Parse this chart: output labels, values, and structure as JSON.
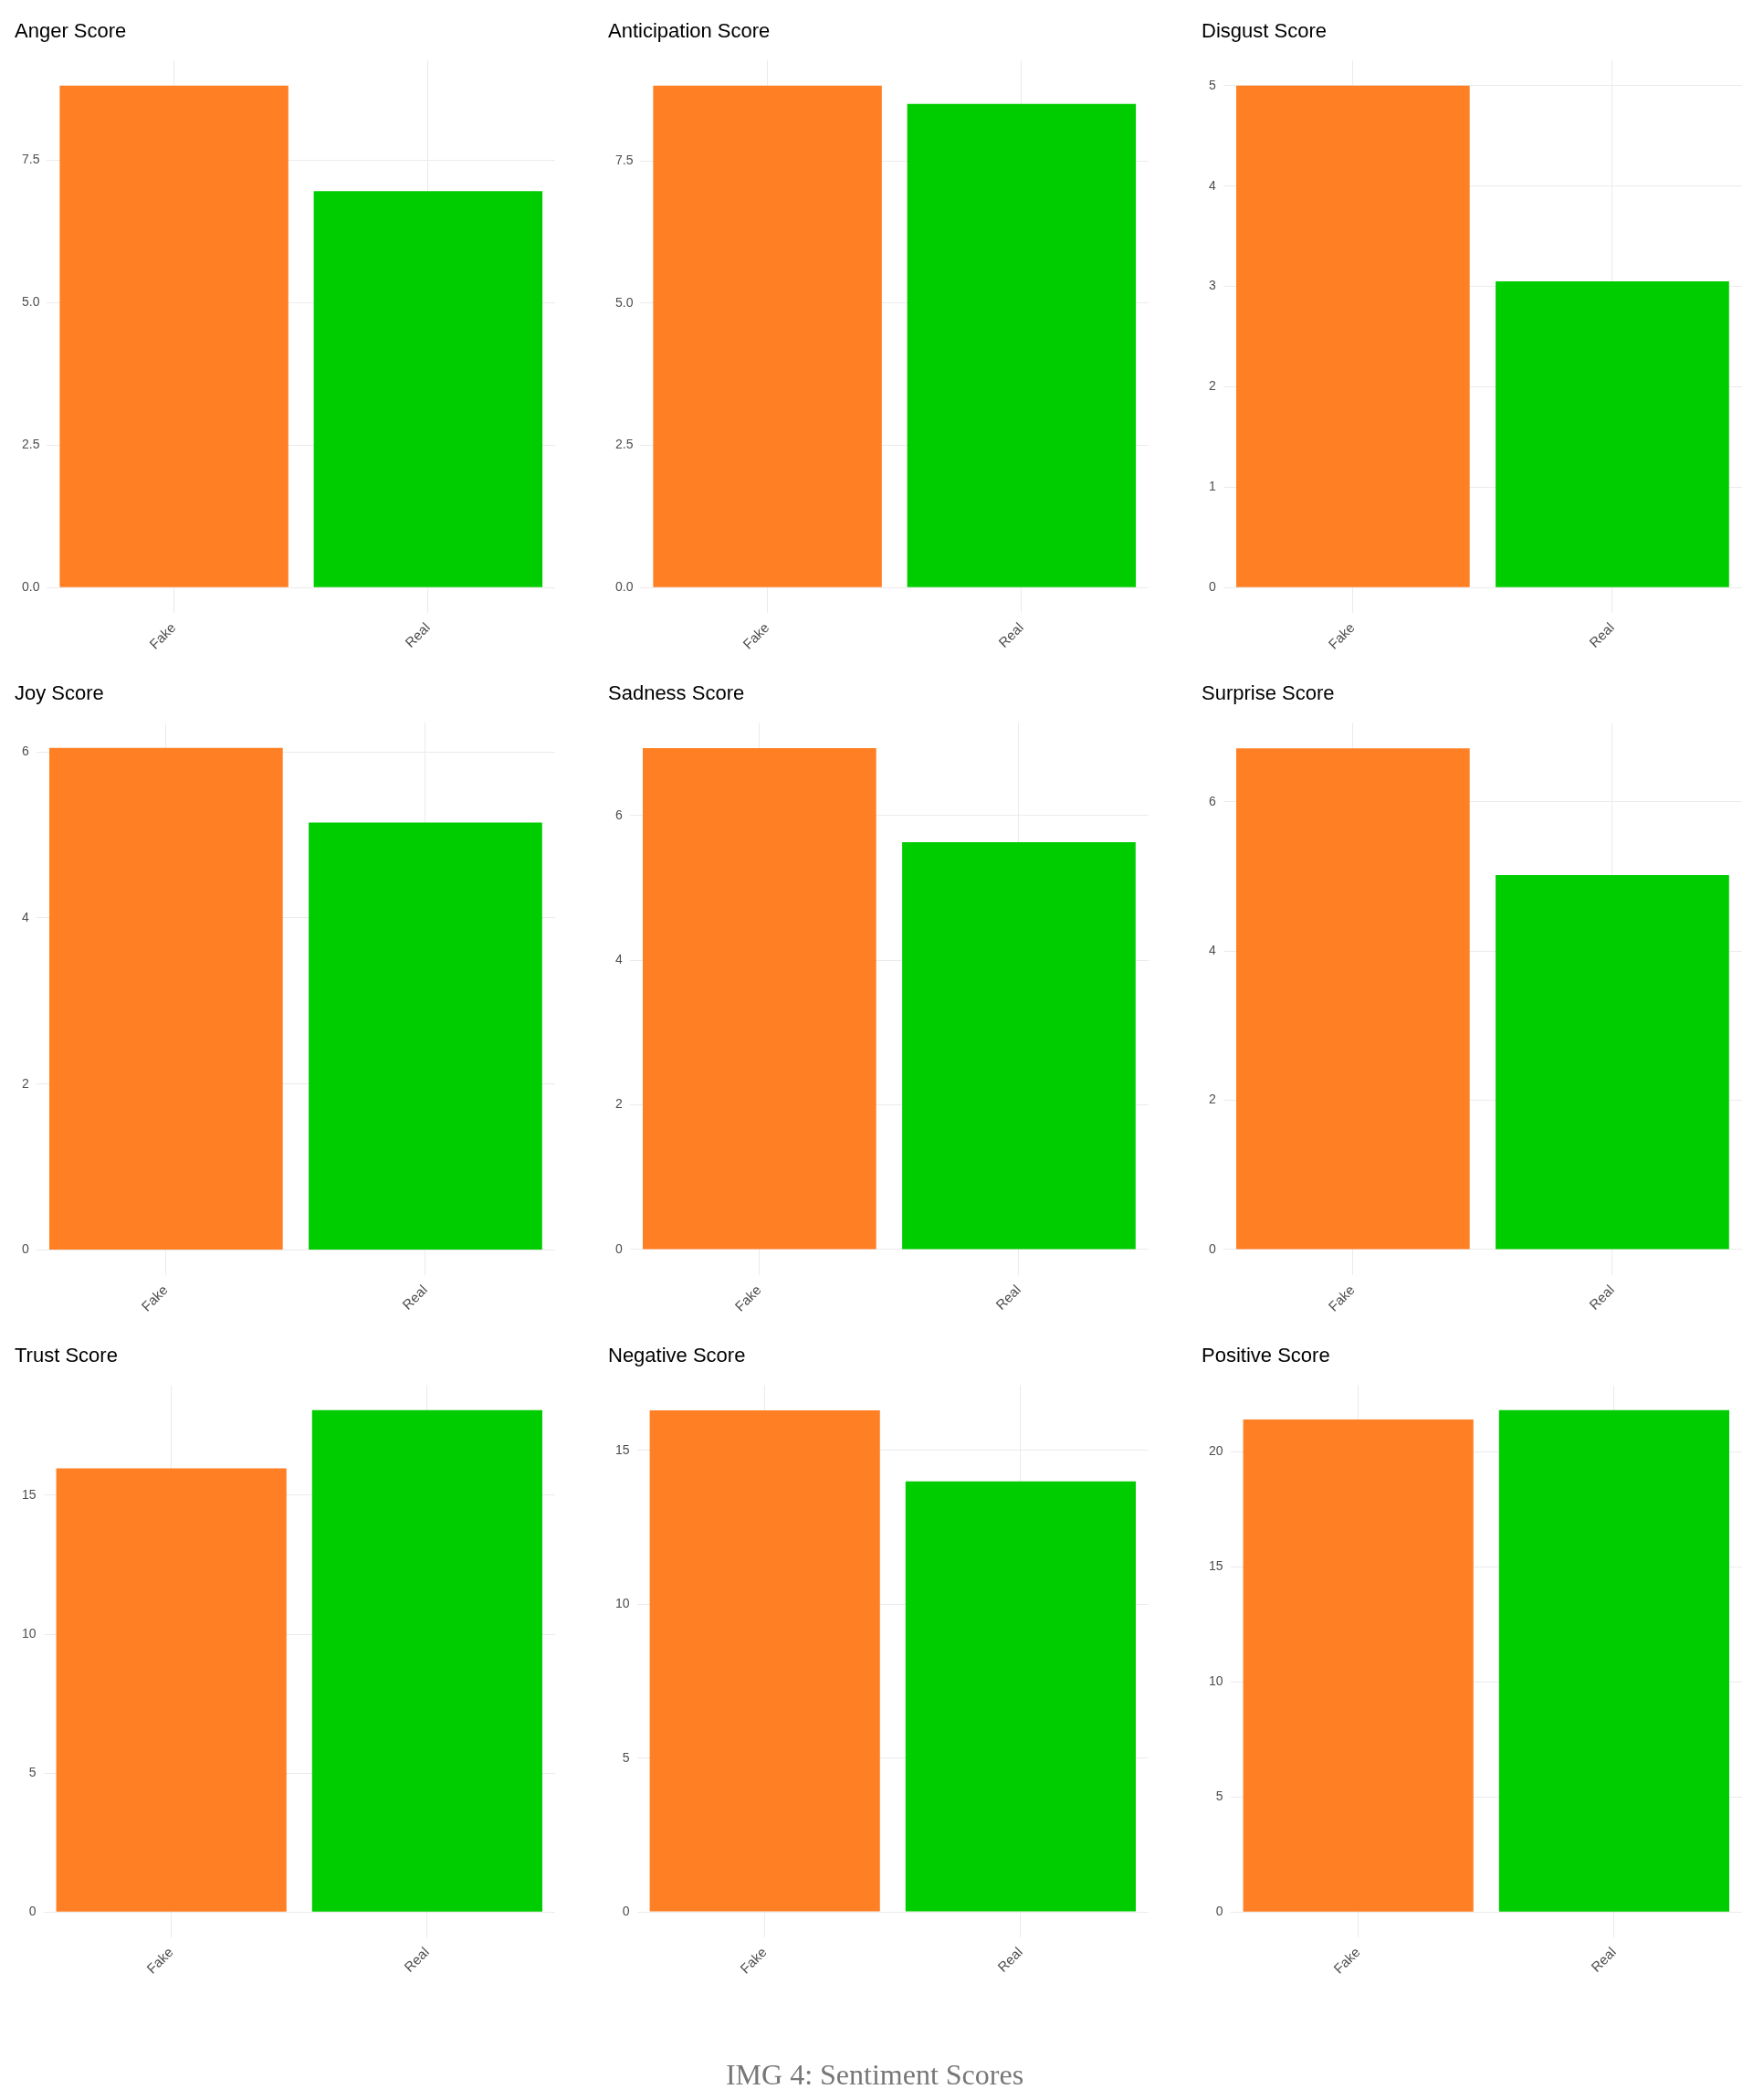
{
  "chart_data": [
    {
      "type": "bar",
      "title": "Anger Score",
      "categories": [
        "Fake",
        "Real"
      ],
      "values": [
        8.8,
        6.95
      ],
      "colors": [
        "#ff7f24",
        "#00cd00"
      ],
      "ylim": [
        -0.44,
        9.24
      ],
      "yticks": [
        {
          "value": 0,
          "label": "0.0"
        },
        {
          "value": 2.5,
          "label": "2.5"
        },
        {
          "value": 5,
          "label": "5.0"
        },
        {
          "value": 7.5,
          "label": "7.5"
        }
      ],
      "grid": true
    },
    {
      "type": "bar",
      "title": "Anticipation Score",
      "categories": [
        "Fake",
        "Real"
      ],
      "values": [
        8.82,
        8.5
      ],
      "colors": [
        "#ff7f24",
        "#00cd00"
      ],
      "ylim": [
        -0.44,
        9.26
      ],
      "yticks": [
        {
          "value": 0,
          "label": "0.0"
        },
        {
          "value": 2.5,
          "label": "2.5"
        },
        {
          "value": 5,
          "label": "5.0"
        },
        {
          "value": 7.5,
          "label": "7.5"
        }
      ],
      "grid": true
    },
    {
      "type": "bar",
      "title": "Disgust Score",
      "categories": [
        "Fake",
        "Real"
      ],
      "values": [
        5.0,
        3.05
      ],
      "colors": [
        "#ff7f24",
        "#00cd00"
      ],
      "ylim": [
        -0.25,
        5.25
      ],
      "yticks": [
        0,
        1,
        2,
        3,
        4,
        5
      ],
      "grid": true
    },
    {
      "type": "bar",
      "title": "Joy Score",
      "categories": [
        "Fake",
        "Real"
      ],
      "values": [
        6.05,
        5.15
      ],
      "colors": [
        "#ff7f24",
        "#00cd00"
      ],
      "ylim": [
        -0.3,
        6.35
      ],
      "yticks": [
        0,
        2,
        4,
        6
      ],
      "grid": true
    },
    {
      "type": "bar",
      "title": "Sadness Score",
      "categories": [
        "Fake",
        "Real"
      ],
      "values": [
        6.93,
        5.63
      ],
      "colors": [
        "#ff7f24",
        "#00cd00"
      ],
      "ylim": [
        -0.35,
        7.28
      ],
      "yticks": [
        0,
        2,
        4,
        6
      ],
      "grid": true
    },
    {
      "type": "bar",
      "title": "Surprise Score",
      "categories": [
        "Fake",
        "Real"
      ],
      "values": [
        6.72,
        5.02
      ],
      "colors": [
        "#ff7f24",
        "#00cd00"
      ],
      "ylim": [
        -0.34,
        7.06
      ],
      "yticks": [
        0,
        2,
        4,
        6
      ],
      "grid": true
    },
    {
      "type": "bar",
      "title": "Trust Score",
      "categories": [
        "Fake",
        "Real"
      ],
      "values": [
        15.97,
        18.06
      ],
      "colors": [
        "#ff7f24",
        "#00cd00"
      ],
      "ylim": [
        -0.9,
        18.96
      ],
      "yticks": [
        0,
        5,
        10,
        15
      ],
      "grid": true
    },
    {
      "type": "bar",
      "title": "Negative Score",
      "categories": [
        "Fake",
        "Real"
      ],
      "values": [
        16.3,
        13.99
      ],
      "colors": [
        "#ff7f24",
        "#00cd00"
      ],
      "ylim": [
        -0.82,
        17.12
      ],
      "yticks": [
        0,
        5,
        10,
        15
      ],
      "grid": true
    },
    {
      "type": "bar",
      "title": "Positive Score",
      "categories": [
        "Fake",
        "Real"
      ],
      "values": [
        21.4,
        21.8
      ],
      "colors": [
        "#ff7f24",
        "#00cd00"
      ],
      "ylim": [
        -1.09,
        22.89
      ],
      "yticks": [
        0,
        5,
        10,
        15,
        20
      ],
      "grid": true,
      "annotations": [
        "IMG 4: Sentiment Scores"
      ]
    }
  ]
}
